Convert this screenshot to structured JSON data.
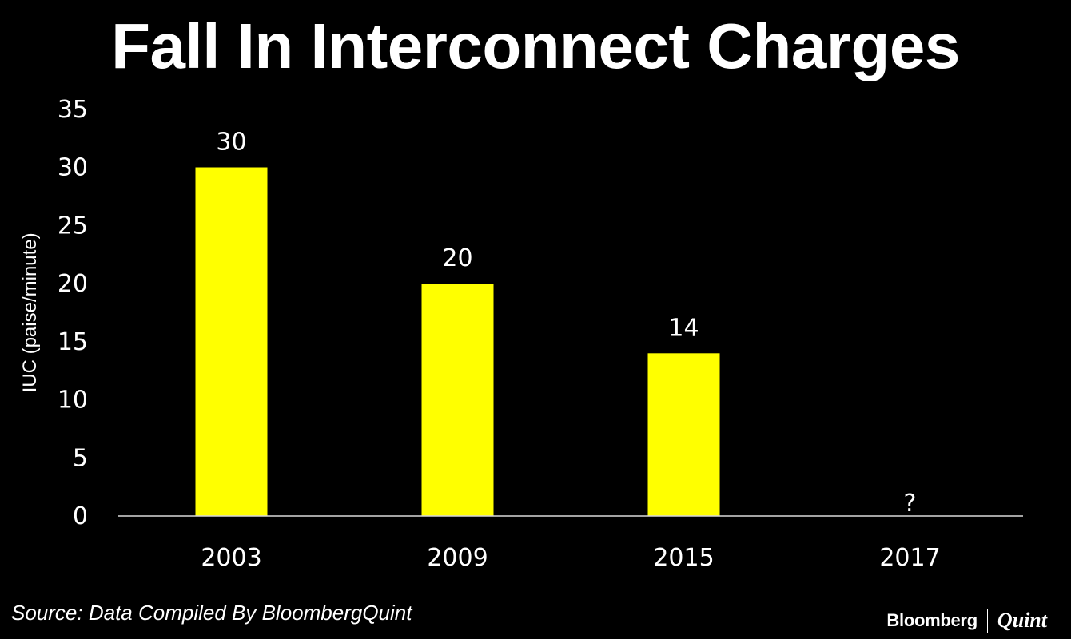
{
  "chart_data": {
    "type": "bar",
    "title": "Fall In Interconnect Charges",
    "xlabel": "",
    "ylabel": "IUC (paise/minute)",
    "categories": [
      "2003",
      "2009",
      "2015",
      "2017"
    ],
    "values": [
      30,
      20,
      14,
      null
    ],
    "data_labels": [
      "30",
      "20",
      "14",
      "?"
    ],
    "ylim": [
      0,
      35
    ],
    "yticks": [
      0,
      5,
      10,
      15,
      20,
      25,
      30,
      35
    ],
    "grid": false,
    "legend": "none",
    "bar_color": "#ffff00",
    "background_color": "#000000"
  },
  "footer": {
    "source": "Source: Data Compiled By BloombergQuint",
    "logo_brand": "Bloomberg",
    "logo_sub": "Quint"
  }
}
